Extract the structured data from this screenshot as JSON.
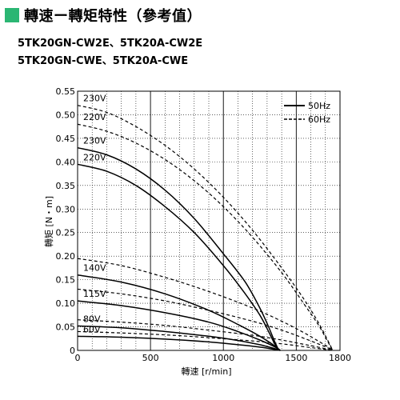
{
  "header": {
    "title": "轉速ー轉矩特性（參考值）",
    "models": [
      "5TK20GN-CW2E、5TK20A-CW2E",
      "5TK20GN-CWE、5TK20A-CWE"
    ]
  },
  "colors": {
    "title_marker": "#2bb673",
    "line": "#000000",
    "grid": "#000000"
  },
  "chart_data": {
    "type": "line",
    "xlabel": "轉速 [r/min]",
    "ylabel": "轉矩 [N・m]",
    "xlim": [
      0,
      1800
    ],
    "ylim": [
      0,
      0.55
    ],
    "x_ticks": [
      "0",
      "500",
      "1000",
      "1500",
      "1800"
    ],
    "x_tick_values": [
      0,
      500,
      1000,
      1500,
      1800
    ],
    "y_ticks": [
      "0",
      "0.05",
      "0.10",
      "0.15",
      "0.20",
      "0.25",
      "0.30",
      "0.35",
      "0.40",
      "0.45",
      "0.50",
      "0.55"
    ],
    "y_tick_values": [
      0,
      0.05,
      0.1,
      0.15,
      0.2,
      0.25,
      0.3,
      0.35,
      0.4,
      0.45,
      0.5,
      0.55
    ],
    "grid": true,
    "legend": {
      "position": "top-right",
      "items": [
        {
          "label": "50Hz",
          "style": "solid"
        },
        {
          "label": "60Hz",
          "style": "dashed"
        }
      ]
    },
    "series": [
      {
        "label": "230V",
        "frequency": "50Hz",
        "style": "solid",
        "x": [
          0,
          200,
          400,
          600,
          800,
          1000,
          1150,
          1250,
          1310,
          1350,
          1380
        ],
        "y": [
          0.43,
          0.415,
          0.385,
          0.34,
          0.28,
          0.205,
          0.145,
          0.09,
          0.05,
          0.02,
          0
        ]
      },
      {
        "label": "220V",
        "frequency": "50Hz",
        "style": "solid",
        "x": [
          0,
          200,
          400,
          600,
          800,
          1000,
          1150,
          1250,
          1310,
          1350,
          1380
        ],
        "y": [
          0.395,
          0.38,
          0.35,
          0.305,
          0.25,
          0.18,
          0.12,
          0.075,
          0.04,
          0.015,
          0
        ]
      },
      {
        "label": "140V",
        "frequency": "50Hz",
        "style": "solid",
        "x": [
          0,
          300,
          600,
          900,
          1100,
          1250,
          1350,
          1390
        ],
        "y": [
          0.16,
          0.145,
          0.12,
          0.085,
          0.055,
          0.03,
          0.01,
          0
        ]
      },
      {
        "label": "115V",
        "frequency": "50Hz",
        "style": "solid",
        "x": [
          0,
          300,
          600,
          900,
          1100,
          1250,
          1350,
          1390
        ],
        "y": [
          0.105,
          0.095,
          0.08,
          0.06,
          0.04,
          0.022,
          0.008,
          0
        ]
      },
      {
        "label": "80V",
        "frequency": "50Hz",
        "style": "solid",
        "x": [
          0,
          300,
          600,
          900,
          1100,
          1250,
          1350,
          1390
        ],
        "y": [
          0.052,
          0.048,
          0.04,
          0.03,
          0.021,
          0.012,
          0.004,
          0
        ]
      },
      {
        "label": "60V",
        "frequency": "50Hz",
        "style": "solid",
        "x": [
          0,
          300,
          600,
          900,
          1100,
          1250,
          1350,
          1390
        ],
        "y": [
          0.03,
          0.028,
          0.024,
          0.018,
          0.012,
          0.007,
          0.002,
          0
        ]
      },
      {
        "label": "230V",
        "frequency": "60Hz",
        "style": "dashed",
        "x": [
          0,
          200,
          400,
          600,
          800,
          1000,
          1200,
          1400,
          1550,
          1650,
          1710,
          1750
        ],
        "y": [
          0.52,
          0.505,
          0.475,
          0.435,
          0.385,
          0.325,
          0.255,
          0.175,
          0.11,
          0.06,
          0.025,
          0
        ]
      },
      {
        "label": "220V",
        "frequency": "60Hz",
        "style": "dashed",
        "x": [
          0,
          200,
          400,
          600,
          800,
          1000,
          1200,
          1400,
          1550,
          1650,
          1710,
          1750
        ],
        "y": [
          0.48,
          0.465,
          0.44,
          0.405,
          0.36,
          0.305,
          0.24,
          0.165,
          0.1,
          0.055,
          0.022,
          0
        ]
      },
      {
        "label": "140V",
        "frequency": "60Hz",
        "style": "dashed",
        "x": [
          0,
          300,
          600,
          900,
          1200,
          1400,
          1550,
          1650,
          1720,
          1750
        ],
        "y": [
          0.195,
          0.18,
          0.155,
          0.125,
          0.09,
          0.062,
          0.038,
          0.02,
          0.007,
          0
        ]
      },
      {
        "label": "115V",
        "frequency": "60Hz",
        "style": "dashed",
        "x": [
          0,
          300,
          600,
          900,
          1200,
          1400,
          1550,
          1650,
          1720,
          1750
        ],
        "y": [
          0.13,
          0.12,
          0.105,
          0.085,
          0.062,
          0.043,
          0.026,
          0.014,
          0.005,
          0
        ]
      },
      {
        "label": "80V",
        "frequency": "60Hz",
        "style": "dashed",
        "x": [
          0,
          300,
          600,
          900,
          1200,
          1400,
          1550,
          1650,
          1720,
          1750
        ],
        "y": [
          0.065,
          0.06,
          0.053,
          0.043,
          0.032,
          0.022,
          0.013,
          0.007,
          0.002,
          0
        ]
      },
      {
        "label": "60V",
        "frequency": "60Hz",
        "style": "dashed",
        "x": [
          0,
          300,
          600,
          900,
          1200,
          1400,
          1550,
          1650,
          1720,
          1750
        ],
        "y": [
          0.04,
          0.037,
          0.033,
          0.027,
          0.02,
          0.014,
          0.008,
          0.004,
          0.001,
          0
        ]
      }
    ],
    "annotations": [
      {
        "text": "230V",
        "series_index": 6
      },
      {
        "text": "220V",
        "series_index": 7
      },
      {
        "text": "230V",
        "series_index": 0
      },
      {
        "text": "220V",
        "series_index": 1
      },
      {
        "text": "140V",
        "series_index": 2
      },
      {
        "text": "115V",
        "series_index": 3
      },
      {
        "text": "80V",
        "series_index": 4
      },
      {
        "text": "60V",
        "series_index": 5
      }
    ]
  }
}
